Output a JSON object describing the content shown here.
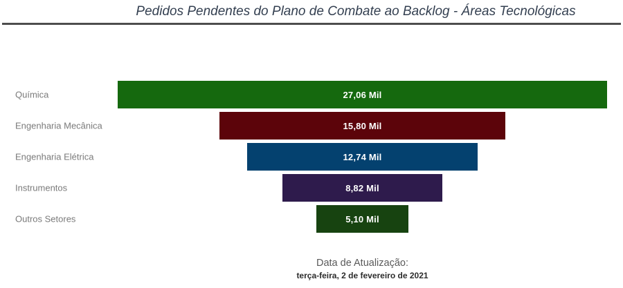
{
  "chart_data": {
    "type": "bar",
    "subtype": "funnel",
    "orientation": "horizontal-centered",
    "title": "Pedidos Pendentes do Plano de Combate ao Backlog - Áreas Tecnológicas",
    "categories": [
      "Química",
      "Engenharia Mecânica",
      "Engenharia Elétrica",
      "Instrumentos",
      "Outros Setores"
    ],
    "values": [
      27.06,
      15.8,
      12.74,
      8.82,
      5.1
    ],
    "value_labels": [
      "27,06 Mil",
      "15,80 Mil",
      "12,74 Mil",
      "8,82 Mil",
      "5,10 Mil"
    ],
    "unit": "Mil",
    "bar_colors": [
      "#15690e",
      "#5c040a",
      "#04416f",
      "#2e1b4c",
      "#174310"
    ],
    "legend": "none",
    "grid": false,
    "axis_labels": "none"
  },
  "colors": {
    "title": "#333f50",
    "divider": "#4d4d4d",
    "category_label": "#7a7a7a",
    "value_label": "#ffffff",
    "background": "#ffffff"
  },
  "footer": {
    "label": "Data de Atualização:",
    "date": "terça-feira, 2 de fevereiro de 2021"
  }
}
